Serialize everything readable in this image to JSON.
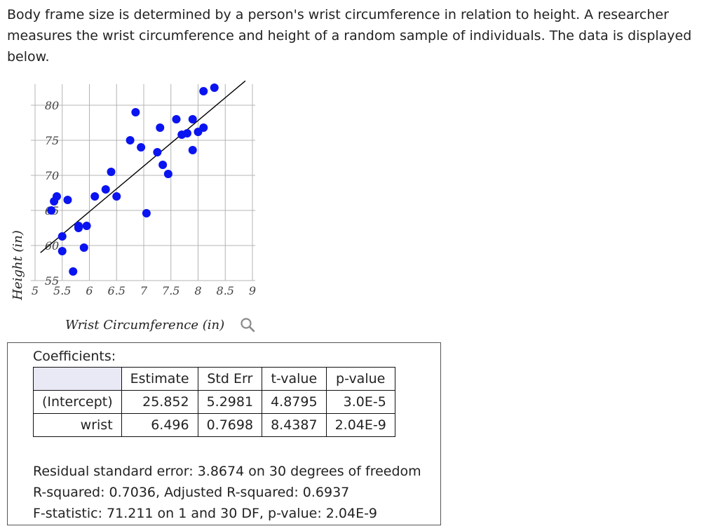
{
  "intro_text": "Body frame size is determined by a person's wrist circumference in relation to height. A researcher measures the wrist circumference and height of a random sample of individuals. The data is displayed below.",
  "chart_data": {
    "type": "scatter",
    "xlabel": "Wrist Circumference (in)",
    "ylabel": "Height (in)",
    "xlim": [
      5,
      9
    ],
    "ylim": [
      55,
      83
    ],
    "x_ticks": [
      "5",
      "5.5",
      "6",
      "6.5",
      "7",
      "7.5",
      "8",
      "8.5",
      "9"
    ],
    "y_ticks": [
      "55",
      "60",
      "65",
      "70",
      "75",
      "80"
    ],
    "grid": true,
    "points": [
      {
        "x": 5.3,
        "y": 65.0
      },
      {
        "x": 5.35,
        "y": 66.3
      },
      {
        "x": 5.4,
        "y": 67.0
      },
      {
        "x": 5.5,
        "y": 61.3
      },
      {
        "x": 5.5,
        "y": 59.2
      },
      {
        "x": 5.6,
        "y": 66.5
      },
      {
        "x": 5.7,
        "y": 56.3
      },
      {
        "x": 5.8,
        "y": 62.8
      },
      {
        "x": 5.8,
        "y": 62.5
      },
      {
        "x": 5.9,
        "y": 59.7
      },
      {
        "x": 5.95,
        "y": 62.8
      },
      {
        "x": 6.1,
        "y": 67.0
      },
      {
        "x": 6.3,
        "y": 68.0
      },
      {
        "x": 6.4,
        "y": 70.5
      },
      {
        "x": 6.5,
        "y": 67.0
      },
      {
        "x": 6.75,
        "y": 75.0
      },
      {
        "x": 6.85,
        "y": 79.0
      },
      {
        "x": 6.95,
        "y": 74.0
      },
      {
        "x": 7.05,
        "y": 64.6
      },
      {
        "x": 7.25,
        "y": 73.3
      },
      {
        "x": 7.3,
        "y": 76.8
      },
      {
        "x": 7.35,
        "y": 71.5
      },
      {
        "x": 7.45,
        "y": 70.2
      },
      {
        "x": 7.6,
        "y": 78.0
      },
      {
        "x": 7.7,
        "y": 75.8
      },
      {
        "x": 7.8,
        "y": 76.0
      },
      {
        "x": 7.9,
        "y": 73.6
      },
      {
        "x": 7.9,
        "y": 78.0
      },
      {
        "x": 8.0,
        "y": 76.2
      },
      {
        "x": 8.1,
        "y": 76.8
      },
      {
        "x": 8.1,
        "y": 82.0
      },
      {
        "x": 8.3,
        "y": 82.5
      }
    ],
    "regression_line": {
      "intercept": 25.852,
      "slope": 6.496
    },
    "point_color": "#0a14f0",
    "line_color": "#000000"
  },
  "output": {
    "coefficients_title": "Coefficients:",
    "headers": [
      "",
      "Estimate",
      "Std Err",
      "t-value",
      "p-value"
    ],
    "rows": [
      {
        "name": "(Intercept)",
        "estimate": "25.852",
        "std_err": "5.2981",
        "t_value": "4.8795",
        "p_value": "3.0E-5"
      },
      {
        "name": "wrist",
        "estimate": "6.496",
        "std_err": "0.7698",
        "t_value": "8.4387",
        "p_value": "2.04E-9"
      }
    ],
    "residual_line": "Residual standard error: 3.8674 on 30 degrees of freedom",
    "rsquared_line": "R-squared: 0.7036, Adjusted R-squared: 0.6937",
    "fstat_line": "F-statistic: 71.211 on 1 and 30 DF, p-value: 2.04E-9"
  }
}
